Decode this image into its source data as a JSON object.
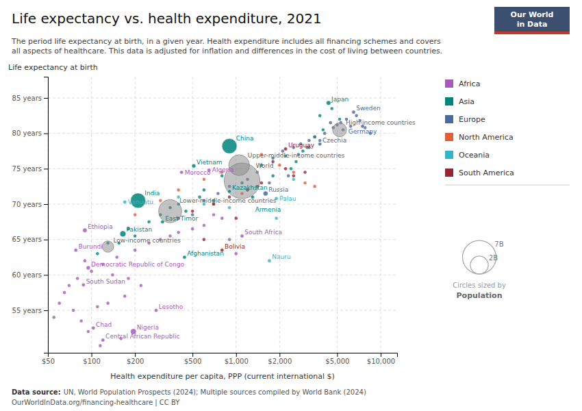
{
  "chart_data": {
    "type": "scatter",
    "title": "Life expectancy vs. health expenditure, 2021",
    "subtitle": [
      "The period life expectancy at birth, in a given year. Health expenditure includes all financing schemes and covers",
      "all aspects of healthcare. This data is adjusted for inflation and differences in the cost of living between countries."
    ],
    "y_label": "Life expectancy at birth",
    "x_label": "Health expenditure per capita, PPP (current international $)",
    "source_label": "Data source:",
    "source": "UN, World Population Prospects (2024); Multiple sources compiled by World Bank (2024)",
    "footer": "OurWorldInData.org/financing-healthcare | CC BY",
    "logo": {
      "lines": [
        "Our World",
        "in Data"
      ],
      "color": "#3d4f6e",
      "bar_color": "#c0392b"
    },
    "log": "x",
    "grid": true,
    "legend": "right",
    "xlim": [
      50,
      13000
    ],
    "ylim": [
      49,
      88
    ],
    "xticks": [
      {
        "value": 50,
        "label": "$50"
      },
      {
        "value": 100,
        "label": "$100"
      },
      {
        "value": 200,
        "label": "$200"
      },
      {
        "value": 500,
        "label": "$500"
      },
      {
        "value": 1000,
        "label": "$1,000"
      },
      {
        "value": 2000,
        "label": "$2,000"
      },
      {
        "value": 5000,
        "label": "$5,000"
      },
      {
        "value": 10000,
        "label": "$10,000"
      }
    ],
    "yticks": [
      {
        "value": 55,
        "label": "55 years"
      },
      {
        "value": 60,
        "label": "60 years"
      },
      {
        "value": 65,
        "label": "65 years"
      },
      {
        "value": 70,
        "label": "70 years"
      },
      {
        "value": 75,
        "label": "75 years"
      },
      {
        "value": 80,
        "label": "80 years"
      },
      {
        "value": 85,
        "label": "85 years"
      }
    ],
    "series": [
      {
        "name": "Africa",
        "color": "#a85ab8",
        "x": [
          90,
          120,
          150,
          200,
          250,
          300,
          350,
          400,
          500,
          600,
          800,
          700,
          900,
          1000,
          80,
          70,
          65,
          60,
          55,
          100,
          140,
          180,
          220,
          170,
          130,
          110,
          75,
          85,
          95,
          160,
          115
        ],
        "values": [
          62.0,
          61.5,
          62.5,
          63.5,
          64.5,
          65.0,
          65.5,
          66.0,
          66.5,
          67.0,
          68.0,
          68.5,
          65.0,
          63.0,
          59.5,
          58.5,
          57.5,
          56.0,
          54.0,
          60.5,
          60.0,
          59.5,
          58.5,
          57.0,
          56.0,
          55.5,
          55.0,
          53.5,
          52.0,
          51.0,
          50.0
        ]
      },
      {
        "name": "Asia",
        "color": "#00847e",
        "x": [
          4600,
          3800,
          2900,
          2200,
          1500,
          800,
          600,
          400,
          300,
          250,
          180,
          130,
          110,
          350,
          1100,
          5200,
          2400,
          1800,
          700,
          450,
          3200,
          4000,
          560,
          3500,
          2600,
          200,
          155
        ],
        "values": [
          83.5,
          82.5,
          77.5,
          76.8,
          75.5,
          74.0,
          72.0,
          70.0,
          68.5,
          67.5,
          66.5,
          64.5,
          63.0,
          69.5,
          73.0,
          82.0,
          75.0,
          74.0,
          70.5,
          69.0,
          78.0,
          80.5,
          71.0,
          79.5,
          76.0,
          65.5,
          64.5
        ]
      },
      {
        "name": "Europe",
        "color": "#4c6a9c",
        "x": [
          6800,
          7200,
          5800,
          4500,
          3500,
          3200,
          2800,
          2500,
          4100,
          5000,
          2100,
          1800,
          3800,
          5500,
          6200,
          7800,
          8500,
          5300,
          4700,
          3100,
          2700,
          1400,
          1200,
          900,
          750,
          600,
          2300,
          1700,
          500
        ],
        "values": [
          82.5,
          81.8,
          82.0,
          81.5,
          79.5,
          79.0,
          78.5,
          78.0,
          80.0,
          81.2,
          77.5,
          76.5,
          79.0,
          80.5,
          81.0,
          80.8,
          80.0,
          81.5,
          80.8,
          78.0,
          77.0,
          74.5,
          73.5,
          72.5,
          71.5,
          70.5,
          74.0,
          73.0,
          68.5
        ]
      },
      {
        "name": "North America",
        "color": "#e0603a",
        "x": [
          1500,
          2000,
          2500,
          3000,
          3500,
          800,
          600,
          400,
          300,
          200,
          1100,
          700
        ],
        "values": [
          77.0,
          75.5,
          74.5,
          73.0,
          72.5,
          74.5,
          73.5,
          72.0,
          70.5,
          68.5,
          71.5,
          70.0
        ]
      },
      {
        "name": "Oceania",
        "color": "#38b4c8",
        "x": [
          1900,
          900,
          600,
          400,
          1200,
          2500
        ],
        "values": [
          68.0,
          69.5,
          70.0,
          71.0,
          72.0,
          73.5
        ]
      },
      {
        "name": "South America",
        "color": "#932834",
        "x": [
          1800,
          2200,
          2500,
          1500,
          1200,
          900,
          700,
          500,
          400,
          600,
          1000,
          3000,
          1400
        ],
        "values": [
          76.0,
          75.0,
          74.0,
          73.0,
          72.0,
          71.0,
          70.0,
          69.0,
          68.0,
          65.0,
          68.0,
          74.5,
          72.5
        ]
      }
    ],
    "aggregates": [
      {
        "label": "World",
        "x": 1100,
        "y": 73.3,
        "size": 7900,
        "color": "#888888"
      },
      {
        "label": "High-income countries",
        "x": 5200,
        "y": 80.5,
        "size": 1200,
        "color": "#888888"
      },
      {
        "label": "Upper-middle-income countries",
        "x": 1050,
        "y": 75.5,
        "size": 2700,
        "color": "#888888"
      },
      {
        "label": "Lower-middle-income countries",
        "x": 350,
        "y": 69.0,
        "size": 3300,
        "color": "#888888"
      },
      {
        "label": "Low-income countries",
        "x": 130,
        "y": 64.0,
        "size": 800,
        "color": "#888888"
      }
    ],
    "annotated_points": [
      {
        "label": "Japan",
        "x": 4360,
        "y": 84.3,
        "size": 125,
        "color": "#00847e"
      },
      {
        "label": "Sweden",
        "x": 6500,
        "y": 83.0,
        "size": 10,
        "color": "#4c6a9c"
      },
      {
        "label": "Germany",
        "x": 7500,
        "y": 81.0,
        "size": 84,
        "color": "#4c6a9c"
      },
      {
        "label": "Czechia",
        "x": 3800,
        "y": 78.5,
        "size": 11,
        "color": "#4c6a9c"
      },
      {
        "label": "Uruguay",
        "x": 2200,
        "y": 77.8,
        "size": 3,
        "color": "#932834"
      },
      {
        "label": "China",
        "x": 900,
        "y": 78.2,
        "size": 1400,
        "color": "#00847e"
      },
      {
        "label": "Vietnam",
        "x": 510,
        "y": 75.4,
        "size": 98,
        "color": "#00847e"
      },
      {
        "label": "Algeria",
        "x": 650,
        "y": 74.8,
        "size": 44,
        "color": "#a85ab8"
      },
      {
        "label": "Morocco",
        "x": 420,
        "y": 74.5,
        "size": 37,
        "color": "#a85ab8"
      },
      {
        "label": "Kazakhstan",
        "x": 900,
        "y": 71.8,
        "size": 19,
        "color": "#00847e"
      },
      {
        "label": "Russia",
        "x": 1600,
        "y": 71.5,
        "size": 145,
        "color": "#4c6a9c"
      },
      {
        "label": "Armenia",
        "x": 1300,
        "y": 71.0,
        "size": 3,
        "color": "#00847e"
      },
      {
        "label": "Palau",
        "x": 1900,
        "y": 70.8,
        "size": 0.02,
        "color": "#38b4c8"
      },
      {
        "label": "India",
        "x": 210,
        "y": 70.5,
        "size": 1400,
        "color": "#00847e"
      },
      {
        "label": "Vanuatu",
        "x": 170,
        "y": 70.3,
        "size": 0.3,
        "color": "#38b4c8"
      },
      {
        "label": "East Timor",
        "x": 310,
        "y": 67.5,
        "size": 1.3,
        "color": "#00847e"
      },
      {
        "label": "Pakistan",
        "x": 165,
        "y": 65.8,
        "size": 225,
        "color": "#00847e"
      },
      {
        "label": "Ethiopia",
        "x": 90,
        "y": 66.3,
        "size": 120,
        "color": "#a85ab8"
      },
      {
        "label": "South Africa",
        "x": 1100,
        "y": 65.5,
        "size": 60,
        "color": "#a85ab8"
      },
      {
        "label": "Bolivia",
        "x": 800,
        "y": 63.5,
        "size": 12,
        "color": "#932834"
      },
      {
        "label": "Afghanistan",
        "x": 440,
        "y": 62.5,
        "size": 40,
        "color": "#00847e"
      },
      {
        "label": "Nauru",
        "x": 1700,
        "y": 62.0,
        "size": 0.01,
        "color": "#38b4c8"
      },
      {
        "label": "Burundi",
        "x": 78,
        "y": 63.5,
        "size": 12,
        "color": "#a85ab8"
      },
      {
        "label": "Democratic Republic of Congo",
        "x": 95,
        "y": 61.0,
        "size": 100,
        "color": "#a85ab8"
      },
      {
        "label": "South Sudan",
        "x": 88,
        "y": 58.6,
        "size": 11,
        "color": "#a85ab8"
      },
      {
        "label": "Lesotho",
        "x": 280,
        "y": 55.0,
        "size": 2.2,
        "color": "#a85ab8"
      },
      {
        "label": "Chad",
        "x": 103,
        "y": 52.5,
        "size": 17,
        "color": "#a85ab8"
      },
      {
        "label": "Nigeria",
        "x": 195,
        "y": 52.0,
        "size": 213,
        "color": "#a85ab8"
      },
      {
        "label": "Central African Republic",
        "x": 120,
        "y": 50.8,
        "size": 5,
        "color": "#a85ab8"
      }
    ],
    "size_legend_title": "Circles sized by",
    "size_legend_label": "Population",
    "size_legend": [
      {
        "value": 7000,
        "label": "7B"
      },
      {
        "value": 2000,
        "label": "2B"
      }
    ]
  }
}
